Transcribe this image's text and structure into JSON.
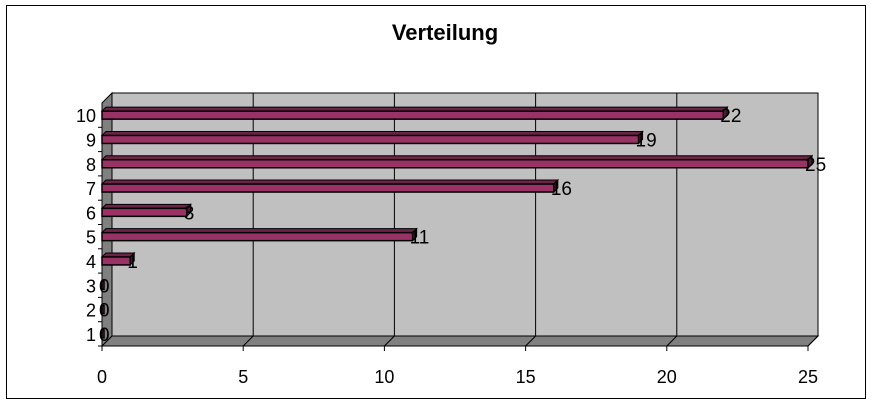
{
  "chart_data": {
    "type": "bar",
    "orientation": "horizontal",
    "title": "Verteilung",
    "xlabel": "",
    "ylabel": "",
    "categories": [
      "1",
      "2",
      "3",
      "4",
      "5",
      "6",
      "7",
      "8",
      "9",
      "10"
    ],
    "values": [
      0,
      0,
      0,
      1,
      11,
      3,
      16,
      25,
      19,
      22
    ],
    "xlim": [
      0,
      25
    ],
    "x_ticks": [
      "0",
      "5",
      "10",
      "15",
      "20",
      "25"
    ],
    "grid": true,
    "legend": "none",
    "colors": {
      "bar": "#993366",
      "bar_edge": "#000000",
      "plot_background": "#c0c0c0",
      "floor": "#808080",
      "gridline": "#000000"
    }
  }
}
